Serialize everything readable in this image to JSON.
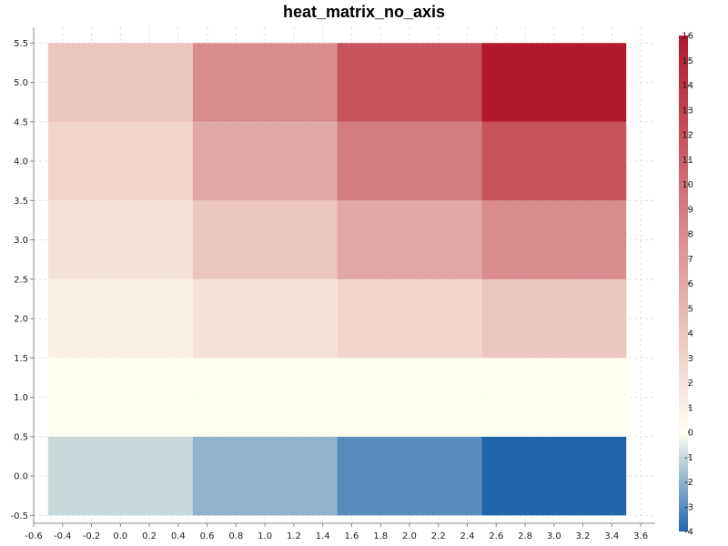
{
  "chart_data": {
    "type": "heatmap",
    "title": "heat_matrix_no_axis",
    "xlabel": "",
    "ylabel": "",
    "x_centers": [
      0,
      1,
      2,
      3
    ],
    "y_centers": [
      0,
      1,
      2,
      3,
      4,
      5
    ],
    "cell_width": 1,
    "cell_height": 1,
    "values": [
      [
        -1,
        -2,
        -3,
        -4
      ],
      [
        0,
        0,
        0,
        0
      ],
      [
        1,
        2,
        3,
        4
      ],
      [
        2,
        4,
        6,
        8
      ],
      [
        3,
        6,
        9,
        12
      ],
      [
        4,
        8,
        12,
        16
      ]
    ],
    "xlim": [
      -0.6,
      3.7
    ],
    "ylim": [
      -0.6,
      5.7
    ],
    "x_ticks": [
      "-0.6",
      "-0.4",
      "-0.2",
      "0.0",
      "0.2",
      "0.4",
      "0.6",
      "0.8",
      "1.0",
      "1.2",
      "1.4",
      "1.6",
      "1.8",
      "2.0",
      "2.2",
      "2.4",
      "2.6",
      "2.8",
      "3.0",
      "3.2",
      "3.4",
      "3.6"
    ],
    "y_ticks": [
      "-0.5",
      "0.0",
      "0.5",
      "1.0",
      "1.5",
      "2.0",
      "2.5",
      "3.0",
      "3.5",
      "4.0",
      "4.5",
      "5.0",
      "5.5"
    ],
    "grid": true,
    "colorbar": {
      "min": -4,
      "max": 16,
      "ticks": [
        "16",
        "15",
        "14",
        "13",
        "12",
        "11",
        "10",
        "9",
        "8",
        "7",
        "6",
        "5",
        "4",
        "3",
        "2",
        "1",
        "0",
        "-1",
        "-2",
        "-3",
        "-4"
      ]
    },
    "colors": {
      "min": "#2166ac",
      "zero": "#ffffef",
      "max": "#b2182b"
    }
  }
}
